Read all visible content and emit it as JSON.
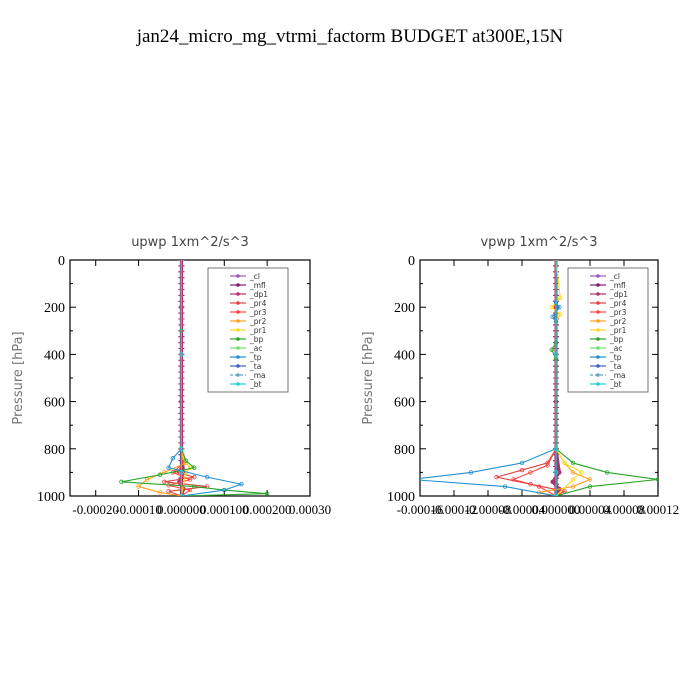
{
  "title": "jan24_micro_mg_vtrmi_factorm  BUDGET at300E,15N",
  "chart_data": [
    {
      "type": "line",
      "title": "upwp   1xm^2/s^3",
      "ylabel": "Pressure [hPa]",
      "ylim": [
        1000,
        0
      ],
      "xlim": [
        -0.00026,
        0.0003
      ],
      "yticks": [
        0,
        200,
        400,
        600,
        800,
        1000
      ],
      "ytick_labels": [
        "0",
        "200",
        "400",
        "600",
        "800",
        "1000"
      ],
      "xtick_labels": [
        "-0.00020",
        "-0.00010",
        "0.000000",
        "0.000100",
        "0.000200",
        "0.00030"
      ],
      "xtick_values": [
        -0.0002,
        -0.0001,
        0.0,
        0.0001,
        0.0002,
        0.0003
      ],
      "legend_position": "top-right",
      "series": [
        {
          "name": "_cl",
          "color": "#9b59b6",
          "marker": "dot",
          "x": [
            0,
            0,
            0,
            0,
            0,
            0
          ],
          "y": [
            0,
            200,
            400,
            600,
            800,
            1000
          ]
        },
        {
          "name": "_mfl",
          "color": "#7a1e6e",
          "marker": "cross",
          "x": [
            0,
            0,
            0,
            0,
            0,
            0
          ],
          "y": [
            0,
            200,
            400,
            600,
            800,
            1000
          ]
        },
        {
          "name": "_dp1",
          "color": "#b0306a",
          "marker": "dot",
          "x": [
            0,
            0,
            0,
            0,
            0,
            5e-06,
            -5e-06,
            5e-06,
            0
          ],
          "y": [
            0,
            200,
            400,
            600,
            800,
            900,
            940,
            970,
            1000
          ]
        },
        {
          "name": "_pr4",
          "color": "#e04040",
          "marker": "diamond",
          "x": [
            0,
            0,
            0,
            5e-06,
            -1e-05,
            3e-05,
            -4e-05,
            6e-05,
            -3e-05,
            0
          ],
          "y": [
            0,
            400,
            800,
            860,
            900,
            920,
            940,
            960,
            980,
            1000
          ]
        },
        {
          "name": "_pr3",
          "color": "#ff4444",
          "marker": "tri",
          "x": [
            0,
            0,
            0,
            5e-06,
            -2e-05,
            2e-05,
            -3e-05,
            2e-05,
            0
          ],
          "y": [
            0,
            400,
            800,
            860,
            900,
            930,
            955,
            975,
            1000
          ]
        },
        {
          "name": "_pr2",
          "color": "#ffa020",
          "marker": "tri",
          "x": [
            0,
            0,
            0,
            1e-05,
            -4e-05,
            -8e-05,
            -0.0001,
            -5e-05,
            0
          ],
          "y": [
            0,
            400,
            800,
            860,
            900,
            930,
            960,
            985,
            1000
          ]
        },
        {
          "name": "_pr1",
          "color": "#ffd820",
          "marker": "circle",
          "x": [
            0,
            0,
            0,
            5e-06,
            1e-05,
            2e-05,
            1e-05,
            0
          ],
          "y": [
            0,
            400,
            800,
            840,
            860,
            880,
            900,
            1000
          ]
        },
        {
          "name": "_bp",
          "color": "#28a428",
          "marker": "cross",
          "x": [
            0,
            0,
            0,
            1e-05,
            3e-05,
            -5e-05,
            -0.00014,
            3e-05,
            0.0001,
            0.0002,
            0
          ],
          "y": [
            0,
            300,
            800,
            850,
            880,
            910,
            940,
            960,
            975,
            990,
            1000
          ]
        },
        {
          "name": "_ac",
          "color": "#70e070",
          "marker": "circle",
          "x": [
            0,
            0,
            0,
            0,
            0
          ],
          "y": [
            0,
            400,
            800,
            900,
            1000
          ]
        },
        {
          "name": "_tp",
          "color": "#2090d0",
          "marker": "cross",
          "x": [
            0,
            0,
            0,
            -2e-05,
            -3e-05,
            6e-05,
            0.00014,
            0.0001,
            0
          ],
          "y": [
            0,
            400,
            800,
            840,
            880,
            920,
            950,
            975,
            1000
          ]
        },
        {
          "name": "_ta",
          "color": "#4060c0",
          "marker": "cross",
          "x": [
            0,
            0,
            0,
            0,
            0
          ],
          "y": [
            0,
            400,
            800,
            900,
            1000
          ]
        },
        {
          "name": "_ma",
          "color": "#60a0c0",
          "marker": "dash",
          "x": [
            0,
            0,
            0,
            0,
            0
          ],
          "y": [
            0,
            400,
            800,
            900,
            1000
          ]
        },
        {
          "name": "_bt",
          "color": "#20d0d0",
          "marker": "dot",
          "x": [
            0,
            0,
            0,
            0,
            0
          ],
          "y": [
            0,
            400,
            800,
            900,
            1000
          ]
        }
      ]
    },
    {
      "type": "line",
      "title": "vpwp   1xm^2/s^3",
      "ylabel": "Pressure [hPa]",
      "ylim": [
        1000,
        0
      ],
      "xlim": [
        -0.00016,
        0.00012
      ],
      "yticks": [
        0,
        200,
        400,
        600,
        800,
        1000
      ],
      "ytick_labels": [
        "0",
        "200",
        "400",
        "600",
        "800",
        "1000"
      ],
      "xtick_labels": [
        "-0.00016",
        "-0.00012",
        "-0.00008",
        "-0.00004",
        "0.000000",
        "0.00004",
        "0.00008",
        "0.00012"
      ],
      "xtick_values": [
        -0.00016,
        -0.00012,
        -8e-05,
        -4e-05,
        0.0,
        4e-05,
        8e-05,
        0.00012
      ],
      "legend_position": "top-right",
      "series": [
        {
          "name": "_cl",
          "color": "#9b59b6",
          "marker": "dot",
          "x": [
            0,
            0,
            0,
            0,
            0,
            0
          ],
          "y": [
            0,
            200,
            400,
            600,
            800,
            1000
          ]
        },
        {
          "name": "_mfl",
          "color": "#7a1e6e",
          "marker": "cross",
          "x": [
            0,
            0,
            0,
            0,
            0,
            0
          ],
          "y": [
            0,
            200,
            400,
            600,
            800,
            1000
          ]
        },
        {
          "name": "_dp1",
          "color": "#b0306a",
          "marker": "dot",
          "x": [
            0,
            0,
            0,
            0,
            0,
            4e-06,
            -4e-06,
            4e-06,
            0
          ],
          "y": [
            0,
            200,
            400,
            600,
            800,
            900,
            940,
            970,
            1000
          ]
        },
        {
          "name": "_pr4",
          "color": "#e04040",
          "marker": "diamond",
          "x": [
            0,
            0,
            0,
            -1e-05,
            -4e-05,
            -7e-05,
            -3e-05,
            1e-05,
            0
          ],
          "y": [
            0,
            400,
            800,
            860,
            890,
            920,
            950,
            980,
            1000
          ]
        },
        {
          "name": "_pr3",
          "color": "#ff4444",
          "marker": "tri",
          "x": [
            0,
            0,
            0,
            -1e-05,
            -3e-05,
            -5e-05,
            -2e-05,
            0
          ],
          "y": [
            0,
            400,
            800,
            870,
            900,
            930,
            960,
            1000
          ]
        },
        {
          "name": "_pr2",
          "color": "#ffa020",
          "marker": "tri",
          "x": [
            0,
            0,
            0,
            1e-05,
            2e-05,
            4e-05,
            2e-05,
            -2e-05,
            0
          ],
          "y": [
            0,
            400,
            800,
            860,
            900,
            930,
            960,
            985,
            1000
          ]
        },
        {
          "name": "_pr1",
          "color": "#ffd820",
          "marker": "circle",
          "x": [
            0,
            5e-06,
            -5e-06,
            5e-06,
            0,
            0,
            1e-05,
            3e-05,
            2e-05,
            0
          ],
          "y": [
            0,
            160,
            200,
            230,
            260,
            800,
            860,
            900,
            930,
            1000
          ]
        },
        {
          "name": "_bp",
          "color": "#28a428",
          "marker": "cross",
          "x": [
            0,
            0,
            -5e-06,
            0,
            0,
            2e-05,
            6e-05,
            0.00012,
            4e-05,
            0
          ],
          "y": [
            0,
            350,
            380,
            420,
            800,
            860,
            900,
            930,
            960,
            1000
          ]
        },
        {
          "name": "_ac",
          "color": "#70e070",
          "marker": "circle",
          "x": [
            0,
            0,
            0,
            0,
            0
          ],
          "y": [
            0,
            400,
            800,
            900,
            1000
          ]
        },
        {
          "name": "_tp",
          "color": "#2090d0",
          "marker": "cross",
          "x": [
            0,
            0,
            4e-06,
            -4e-06,
            0,
            0,
            -4e-05,
            -0.0001,
            -0.00017,
            -6e-05,
            0
          ],
          "y": [
            0,
            180,
            200,
            240,
            260,
            800,
            860,
            900,
            930,
            960,
            1000
          ]
        },
        {
          "name": "_ta",
          "color": "#4060c0",
          "marker": "cross",
          "x": [
            0,
            0,
            0,
            0,
            0
          ],
          "y": [
            0,
            400,
            800,
            900,
            1000
          ]
        },
        {
          "name": "_ma",
          "color": "#60a0c0",
          "marker": "dash",
          "x": [
            0,
            0,
            0,
            0,
            0
          ],
          "y": [
            0,
            400,
            800,
            900,
            1000
          ]
        },
        {
          "name": "_bt",
          "color": "#20d0d0",
          "marker": "dot",
          "x": [
            0,
            0,
            0,
            0,
            0
          ],
          "y": [
            0,
            400,
            800,
            900,
            1000
          ]
        }
      ]
    }
  ]
}
